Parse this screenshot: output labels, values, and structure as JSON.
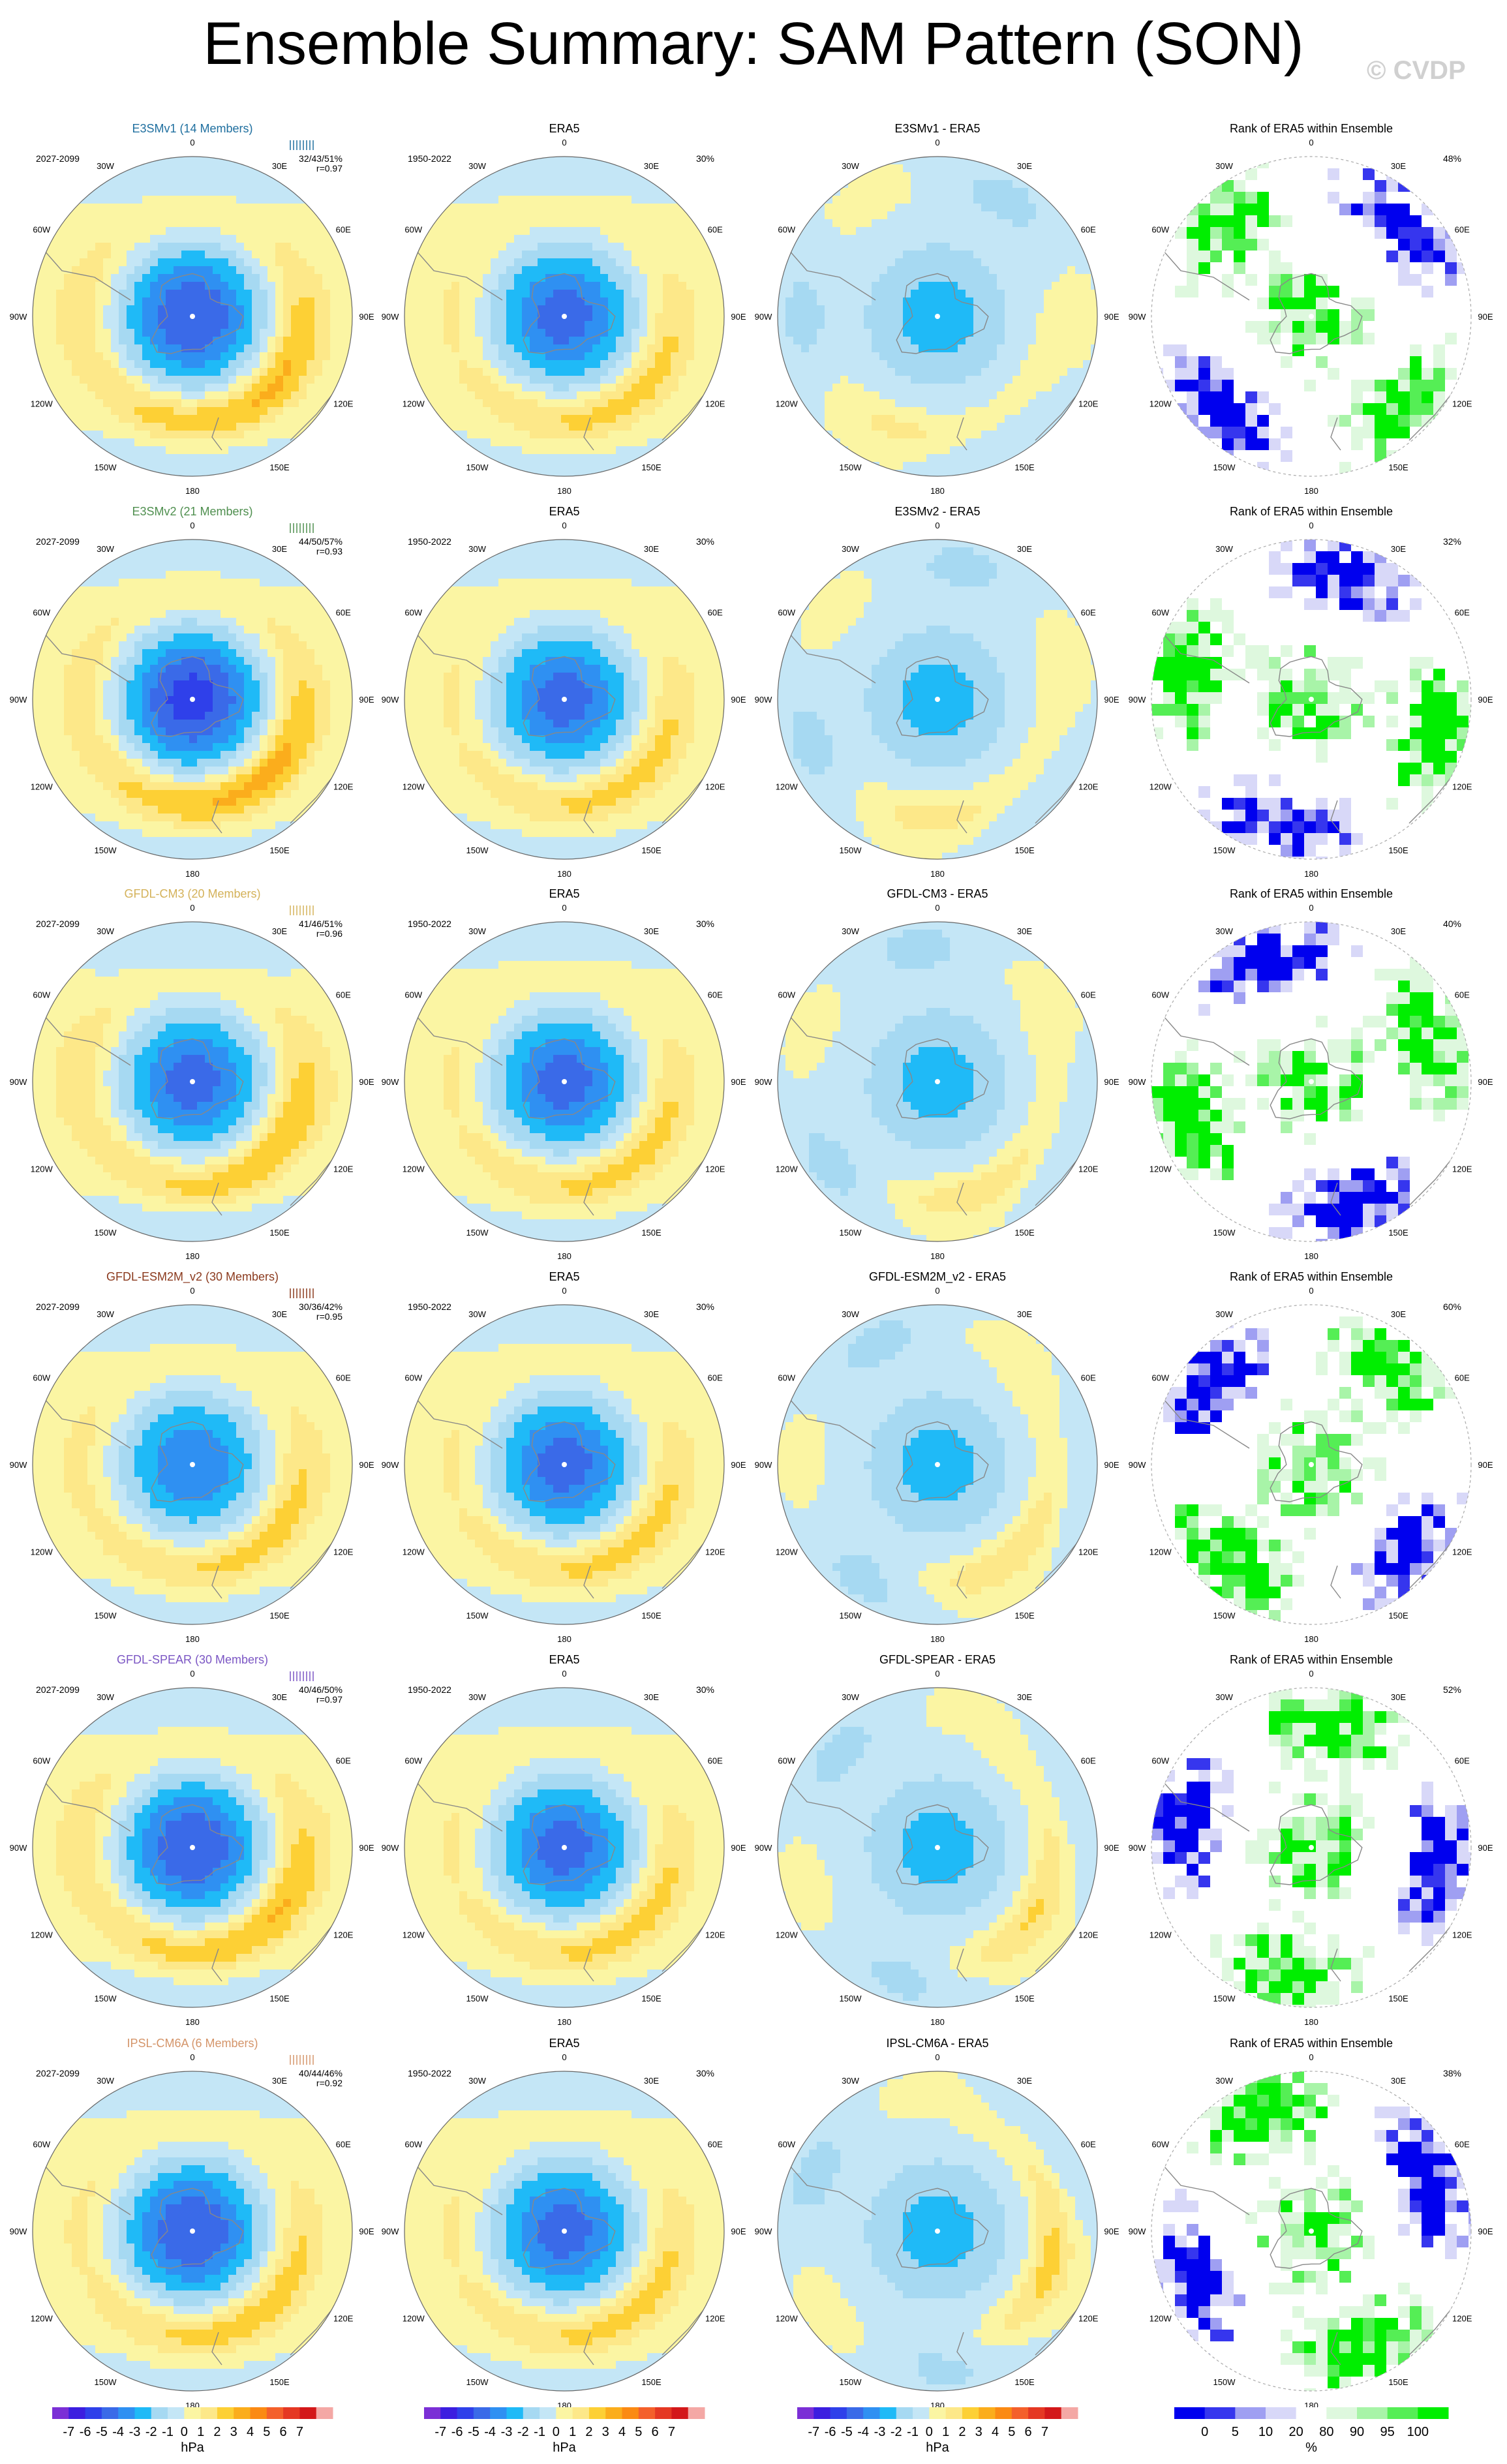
{
  "title": "Ensemble Summary: SAM Pattern (SON)",
  "watermark": "© CVDP",
  "colors": {
    "levels": [
      "#7b2fd6",
      "#3c1ee0",
      "#2f40ea",
      "#3a6ae8",
      "#2f90f2",
      "#1fbaf7",
      "#a6d9f2",
      "#c4e6f6",
      "#fbf5a3",
      "#fde889",
      "#fdd035",
      "#fbad1c",
      "#fb8a13",
      "#f4602b",
      "#e53823",
      "#d3181a",
      "#f4a8a5"
    ],
    "rank": [
      "#0000ee",
      "#3636ee",
      "#9f9ff2",
      "#d8d8f8",
      "#ffffff",
      "#def8de",
      "#a8f4a8",
      "#55ee55",
      "#00ee00"
    ],
    "panel_bg": "#fbf5a3",
    "panel_diff_bg": "#c4e6f6",
    "land": "#888888"
  },
  "rows": [
    {
      "model": "E3SMv1 (14 Members)",
      "model_color": "#1f6f9f",
      "period": "2027-2099",
      "stats": "32/43/51%",
      "r": "r=0.97",
      "diff_title": "E3SMv1 - ERA5",
      "rank_pct": "48%",
      "ring_amp": 3.6,
      "bipole": 2.0,
      "center": -5.0
    },
    {
      "model": "E3SMv2 (21 Members)",
      "model_color": "#4f8f4f",
      "period": "2027-2099",
      "stats": "44/50/57%",
      "r": "r=0.93",
      "diff_title": "E3SMv2 - ERA5",
      "rank_pct": "32%",
      "ring_amp": 3.8,
      "bipole": 1.5,
      "center": -5.5
    },
    {
      "model": "GFDL-CM3 (20 Members)",
      "model_color": "#d4b25a",
      "period": "2027-2099",
      "stats": "41/46/51%",
      "r": "r=0.96",
      "diff_title": "GFDL-CM3 - ERA5",
      "rank_pct": "40%",
      "ring_amp": 3.3,
      "bipole": 2.4,
      "center": -4.5
    },
    {
      "model": "GFDL-ESM2M_v2 (30 Members)",
      "model_color": "#8b3a1e",
      "period": "2027-2099",
      "stats": "30/36/42%",
      "r": "r=0.95",
      "diff_title": "GFDL-ESM2M_v2 - ERA5",
      "rank_pct": "60%",
      "ring_amp": 2.8,
      "bipole": 1.6,
      "center": -4.0
    },
    {
      "model": "GFDL-SPEAR (30 Members)",
      "model_color": "#7b56c4",
      "period": "2027-2099",
      "stats": "40/46/50%",
      "r": "r=0.97",
      "diff_title": "GFDL-SPEAR - ERA5",
      "rank_pct": "52%",
      "ring_amp": 3.5,
      "bipole": 2.1,
      "center": -5.0
    },
    {
      "model": "IPSL-CM6A (6 Members)",
      "model_color": "#d4956a",
      "period": "2027-2099",
      "stats": "40/44/46%",
      "r": "r=0.92",
      "diff_title": "IPSL-CM6A - ERA5",
      "rank_pct": "38%",
      "ring_amp": 3.0,
      "bipole": 1.3,
      "center": -5.0
    }
  ],
  "obs": {
    "title": "ERA5",
    "period": "1950-2022",
    "pct": "30%"
  },
  "rank_title": "Rank of ERA5 within Ensemble",
  "lon_labels": [
    "0",
    "30E",
    "60E",
    "90E",
    "120E",
    "150E",
    "180",
    "150W",
    "120W",
    "90W",
    "60W",
    "30W"
  ],
  "colorbar": {
    "tick_labels": [
      "-7",
      "-6",
      "-5",
      "-4",
      "-3",
      "-2",
      "-1",
      "0",
      "1",
      "2",
      "3",
      "4",
      "5",
      "6",
      "7"
    ],
    "unit": "hPa",
    "rank_tick_labels": [
      "0",
      "5",
      "10",
      "20",
      "80",
      "90",
      "95",
      "100"
    ],
    "rank_unit": "%"
  },
  "chart_data": [
    {
      "type": "heatmap",
      "title": "Ensemble Summary: SAM Pattern (SON)",
      "description_of_panels": "6 rows x 4 columns of south-polar stereographic maps; columns: model ensemble mean, ERA5, model - ERA5, rank of ERA5 within ensemble",
      "contour_levels": [
        -7,
        -6,
        -5,
        -4,
        -3,
        -2,
        -1,
        0,
        1,
        2,
        3,
        4,
        5,
        6,
        7
      ],
      "units": "hPa",
      "rank_levels": [
        0,
        5,
        10,
        20,
        80,
        90,
        95,
        100
      ],
      "rank_units": "%",
      "models": [
        "E3SMv1 (14 Members)",
        "E3SMv2 (21 Members)",
        "GFDL-CM3 (20 Members)",
        "GFDL-ESM2M_v2 (30 Members)",
        "GFDL-SPEAR (30 Members)",
        "IPSL-CM6A (6 Members)"
      ],
      "model_period": "2027-2099",
      "obs_period": "1950-2022",
      "pattern_correlation": [
        0.97,
        0.93,
        0.96,
        0.95,
        0.97,
        0.92
      ],
      "pct_variance_model": [
        "32/43/51%",
        "44/50/57%",
        "41/46/51%",
        "30/36/42%",
        "40/46/50%",
        "40/44/46%"
      ],
      "pct_variance_obs": "30%",
      "rank_pct": [
        "48%",
        "32%",
        "40%",
        "60%",
        "52%",
        "38%"
      ]
    }
  ]
}
